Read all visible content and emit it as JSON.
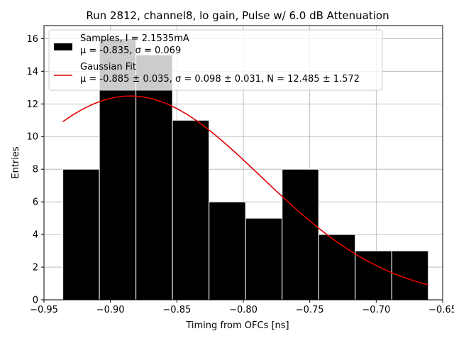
{
  "chart_data": {
    "type": "bar",
    "title": "Run 2812, channel8, lo gain, Pulse w/ 6.0 dB Attenuation",
    "xlabel": "Timing from OFCs [ns]",
    "ylabel": "Entries",
    "xlim": [
      -0.95,
      -0.65
    ],
    "ylim": [
      0,
      16.8
    ],
    "grid": true,
    "legend_position": "top-left",
    "x_ticks": [
      {
        "value": -0.95,
        "label": "−0.95"
      },
      {
        "value": -0.9,
        "label": "−0.90"
      },
      {
        "value": -0.85,
        "label": "−0.85"
      },
      {
        "value": -0.8,
        "label": "−0.80"
      },
      {
        "value": -0.75,
        "label": "−0.75"
      },
      {
        "value": -0.7,
        "label": "−0.70"
      },
      {
        "value": -0.65,
        "label": "−0.65"
      }
    ],
    "y_ticks": [
      {
        "value": 0,
        "label": "0"
      },
      {
        "value": 2,
        "label": "2"
      },
      {
        "value": 4,
        "label": "4"
      },
      {
        "value": 6,
        "label": "6"
      },
      {
        "value": 8,
        "label": "8"
      },
      {
        "value": 10,
        "label": "10"
      },
      {
        "value": 12,
        "label": "12"
      },
      {
        "value": 14,
        "label": "14"
      },
      {
        "value": 16,
        "label": "16"
      }
    ],
    "histogram": {
      "bin_edges": [
        -0.9358,
        -0.9083,
        -0.8808,
        -0.8533,
        -0.8258,
        -0.7983,
        -0.7708,
        -0.7433,
        -0.7158,
        -0.6883,
        -0.6608
      ],
      "counts": [
        8,
        16,
        15,
        11,
        6,
        5,
        8,
        4,
        3,
        3
      ],
      "color": "#000000",
      "edgecolor": "#ffffff"
    },
    "fit": {
      "type": "gaussian",
      "mu": -0.885,
      "sigma": 0.098,
      "N": 12.485,
      "x_range": [
        -0.9358,
        -0.6608
      ],
      "color": "#e00000"
    },
    "legend": [
      {
        "kind": "patch",
        "color": "#000000",
        "lines": [
          "Samples, I = 2.1535mA",
          "μ = -0.835, σ = 0.069"
        ]
      },
      {
        "kind": "line",
        "color": "#e00000",
        "lines": [
          "Gaussian Fit",
          "μ = -0.885 ± 0.035, σ = 0.098 ± 0.031, N = 12.485 ± 1.572"
        ]
      }
    ]
  }
}
